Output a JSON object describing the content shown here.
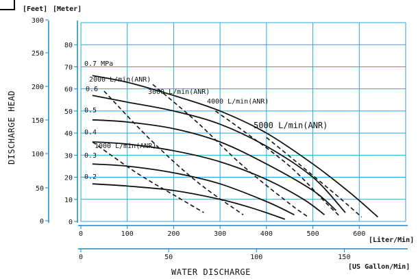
{
  "chart_data": {
    "type": "line",
    "x_axis": {
      "primary_unit": "[Liter/Min]",
      "primary_ticks": [
        "0",
        "100",
        "200",
        "300",
        "400",
        "500",
        "600"
      ],
      "primary_range": [
        0,
        700
      ],
      "secondary_unit": "[US Gallon/Min]",
      "secondary_ticks": [
        "0",
        "50",
        "100",
        "150"
      ],
      "title": "WATER  DISCHARGE"
    },
    "y_axis": {
      "left_unit": "[Feet]",
      "left_ticks": [
        "0",
        "50",
        "100",
        "150",
        "200",
        "250",
        "300"
      ],
      "right_unit": "[Meter]",
      "right_ticks": [
        "0",
        "10",
        "20",
        "30",
        "40",
        "50",
        "60",
        "70",
        "80"
      ],
      "right_range": [
        0,
        90
      ],
      "title": "DISCHARGE  HEAD"
    },
    "grid": true,
    "series": [
      {
        "name": "0.7 MPa",
        "style": "solid",
        "points": [
          [
            25,
            66
          ],
          [
            100,
            63
          ],
          [
            200,
            57
          ],
          [
            300,
            50
          ],
          [
            400,
            40
          ],
          [
            500,
            26
          ],
          [
            580,
            13
          ],
          [
            640,
            2
          ]
        ]
      },
      {
        "name": "0.6",
        "style": "solid",
        "points": [
          [
            25,
            57
          ],
          [
            100,
            54
          ],
          [
            200,
            50
          ],
          [
            300,
            44
          ],
          [
            400,
            34
          ],
          [
            500,
            20
          ],
          [
            570,
            4
          ]
        ]
      },
      {
        "name": "0.5",
        "style": "solid",
        "points": [
          [
            25,
            46
          ],
          [
            100,
            45
          ],
          [
            200,
            42
          ],
          [
            300,
            36
          ],
          [
            400,
            26
          ],
          [
            500,
            14
          ],
          [
            550,
            5
          ]
        ]
      },
      {
        "name": "0.4",
        "style": "solid",
        "points": [
          [
            25,
            36
          ],
          [
            100,
            35
          ],
          [
            200,
            32
          ],
          [
            300,
            27
          ],
          [
            400,
            19
          ],
          [
            480,
            10
          ],
          [
            525,
            3
          ]
        ]
      },
      {
        "name": "0.3",
        "style": "solid",
        "points": [
          [
            25,
            26
          ],
          [
            100,
            25
          ],
          [
            200,
            22
          ],
          [
            300,
            17
          ],
          [
            400,
            9
          ],
          [
            460,
            3
          ]
        ]
      },
      {
        "name": "0.2",
        "style": "solid",
        "points": [
          [
            25,
            17
          ],
          [
            100,
            16
          ],
          [
            200,
            14
          ],
          [
            300,
            10
          ],
          [
            370,
            6
          ],
          [
            440,
            1
          ]
        ]
      },
      {
        "name": "1000 L/min(ANR)",
        "style": "dashed",
        "points": [
          [
            25,
            36
          ],
          [
            120,
            22
          ],
          [
            200,
            12
          ],
          [
            265,
            4
          ]
        ]
      },
      {
        "name": "2000 L/min(ANR)",
        "style": "dashed",
        "points": [
          [
            50,
            59
          ],
          [
            150,
            37
          ],
          [
            250,
            18
          ],
          [
            350,
            3
          ]
        ]
      },
      {
        "name": "3000 L/min(ANR)",
        "style": "dashed",
        "points": [
          [
            155,
            62
          ],
          [
            250,
            45
          ],
          [
            350,
            25
          ],
          [
            450,
            8
          ],
          [
            490,
            2
          ]
        ]
      },
      {
        "name": "4000 L/min(ANR)",
        "style": "dashed",
        "points": [
          [
            290,
            50
          ],
          [
            350,
            41
          ],
          [
            450,
            25
          ],
          [
            530,
            8
          ],
          [
            560,
            2
          ]
        ]
      },
      {
        "name": "5000 L/min(ANR)",
        "style": "dashed",
        "points": [
          [
            400,
            38
          ],
          [
            470,
            26
          ],
          [
            550,
            12
          ],
          [
            605,
            2
          ]
        ]
      }
    ]
  }
}
